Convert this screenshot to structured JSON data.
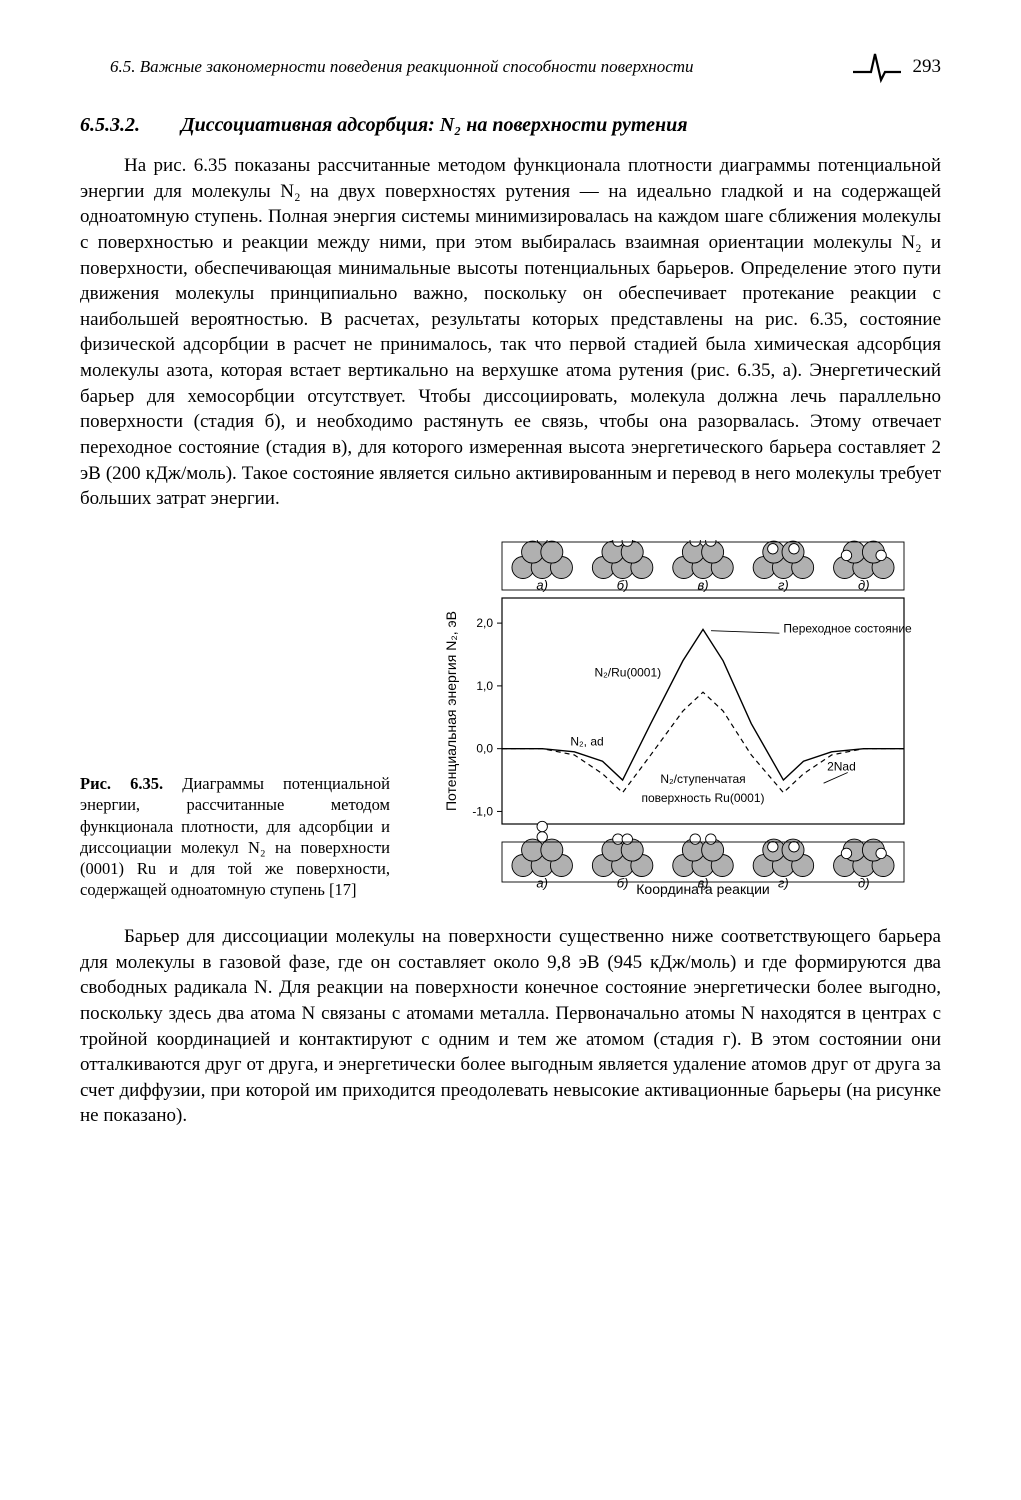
{
  "header": {
    "running_title": "6.5. Важные закономерности поведения реакционной способности поверхности",
    "page_number": "293"
  },
  "heading": {
    "section_number": "6.5.3.2.",
    "title": "Диссоциативная адсорбция: N₂ на поверхности рутения"
  },
  "paragraphs": {
    "p1": "На рис. 6.35 показаны рассчитанные методом функционала плотности диаграммы потенциальной энергии для молекулы N₂ на двух поверхностях рутения — на идеально гладкой и на содержащей одноатомную ступень. Полная энергия системы минимизировалась на каждом шаге сближения молекулы с поверхностью и реакции между ними, при этом выбиралась взаимная ориентации молекулы N₂ и поверхности, обеспечивающая минимальные высоты потенциальных барьеров. Определение этого пути движения молекулы принципиально важно, поскольку он обеспечивает протекание реакции с наибольшей вероятностью. В расчетах, результаты которых представлены на рис. 6.35, состояние физической адсорбции в расчет не принималось, так что первой стадией была химическая адсорбция молекулы азота, которая встает вертикально на верхушке атома рутения (рис. 6.35, а). Энергетический барьер для хемосорбции отсутствует. Чтобы диссоциировать, молекула должна лечь параллельно поверхности (стадия б), и необходимо растянуть ее связь, чтобы она разорвалась. Этому отвечает переходное состояние (стадия в), для которого измеренная высота энергетического барьера составляет 2 эВ (200 кДж/моль). Такое состояние является сильно активированным и перевод в него молекулы требует больших затрат энергии.",
    "p2": "Барьер для диссоциации молекулы на поверхности существенно ниже соответствующего барьера для молекулы в газовой фазе, где он составляет около 9,8 эВ (945 кДж/моль) и где формируются два свободных радикала N. Для реакции на поверхности конечное состояние энергетически более выгодно, поскольку здесь два атома N связаны с атомами металла. Первоначально атомы N находятся в центрах с тройной координацией и контактируют с одним и тем же атомом (стадия г). В этом состоянии они отталкиваются друг от друга, и энергетически более выгодным является удаление атомов друг от друга за счет диффузии, при которой им приходится преодолевать невысокие активационные барьеры (на рисунке не показано)."
  },
  "figure": {
    "caption_title": "Рис. 6.35.",
    "caption_text": "Диаграммы потенциальной энергии, рассчитанные методом функционала плотности, для адсорбции и диссоциации молекул N₂ на поверхности (0001) Ru и для той же поверхности, содержащей одноатомную ступень [17]",
    "chart": {
      "type": "line",
      "xlabel": "Координата реакции",
      "ylabel": "Потенциальная энергия N₂, эВ",
      "ylim": [
        -1.2,
        2.4
      ],
      "yticks": [
        -1.0,
        0.0,
        1.0,
        2.0
      ],
      "label_fontsize": 14,
      "tick_fontsize": 12,
      "background_color": "#ffffff",
      "axis_color": "#000000",
      "series": [
        {
          "name": "N₂/Ru(0001)",
          "style": "solid",
          "color": "#000000",
          "linewidth": 1.4,
          "points": [
            [
              0,
              0
            ],
            [
              0.1,
              0.0
            ],
            [
              0.18,
              -0.05
            ],
            [
              0.25,
              -0.2
            ],
            [
              0.3,
              -0.5
            ],
            [
              0.37,
              0.4
            ],
            [
              0.45,
              1.4
            ],
            [
              0.5,
              1.9
            ],
            [
              0.55,
              1.4
            ],
            [
              0.62,
              0.4
            ],
            [
              0.7,
              -0.5
            ],
            [
              0.75,
              -0.2
            ],
            [
              0.82,
              -0.05
            ],
            [
              0.9,
              0.0
            ],
            [
              1.0,
              0.0
            ]
          ]
        },
        {
          "name": "N₂/ступенчатая поверхность Ru(0001)",
          "style": "dashed",
          "color": "#000000",
          "linewidth": 1.2,
          "points": [
            [
              0,
              0
            ],
            [
              0.1,
              0.0
            ],
            [
              0.18,
              -0.1
            ],
            [
              0.25,
              -0.4
            ],
            [
              0.3,
              -0.7
            ],
            [
              0.37,
              -0.1
            ],
            [
              0.45,
              0.6
            ],
            [
              0.5,
              0.9
            ],
            [
              0.55,
              0.6
            ],
            [
              0.62,
              -0.1
            ],
            [
              0.7,
              -0.7
            ],
            [
              0.75,
              -0.4
            ],
            [
              0.82,
              -0.1
            ],
            [
              0.9,
              0.0
            ],
            [
              1.0,
              0.0
            ]
          ]
        }
      ],
      "annotations": {
        "transition_state": "Переходное состояние",
        "n2_ru": "N₂/Ru(0001)",
        "n2_ad": "N₂, ad",
        "two_n_ad": "2Nad",
        "n2_step": "N₂/ступенчатая",
        "n2_step2": "поверхность Ru(0001)"
      },
      "panel_labels": [
        "а)",
        "б)",
        "в)",
        "г)",
        "д)"
      ],
      "atom_color": "#b0b0b0",
      "atom_stroke": "#000000",
      "adsorbate_color": "#ffffff"
    }
  }
}
